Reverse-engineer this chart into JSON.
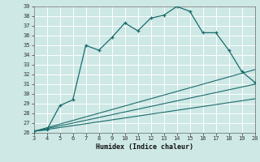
{
  "xlabel": "Humidex (Indice chaleur)",
  "bg_color": "#cde8e5",
  "grid_color": "#ffffff",
  "line_color": "#1a6b6b",
  "xlim": [
    3,
    20
  ],
  "ylim": [
    26,
    39
  ],
  "xticks": [
    3,
    4,
    5,
    6,
    7,
    8,
    9,
    10,
    11,
    12,
    13,
    14,
    15,
    16,
    17,
    18,
    19,
    20
  ],
  "yticks": [
    26,
    27,
    28,
    29,
    30,
    31,
    32,
    33,
    34,
    35,
    36,
    37,
    38,
    39
  ],
  "main_x": [
    3,
    4,
    5,
    6,
    7,
    8,
    9,
    10,
    11,
    12,
    13,
    14,
    15,
    16,
    17,
    18,
    19,
    20
  ],
  "main_y": [
    26.2,
    26.3,
    28.8,
    29.4,
    35.0,
    34.5,
    35.8,
    37.3,
    36.5,
    37.8,
    38.1,
    39.0,
    38.5,
    36.3,
    36.3,
    34.5,
    32.3,
    31.2
  ],
  "ref_line1_x": [
    3,
    20
  ],
  "ref_line1_y": [
    26.15,
    29.5
  ],
  "ref_line2_x": [
    3,
    20
  ],
  "ref_line2_y": [
    26.15,
    31.0
  ],
  "ref_line3_x": [
    3,
    20
  ],
  "ref_line3_y": [
    26.15,
    32.5
  ]
}
